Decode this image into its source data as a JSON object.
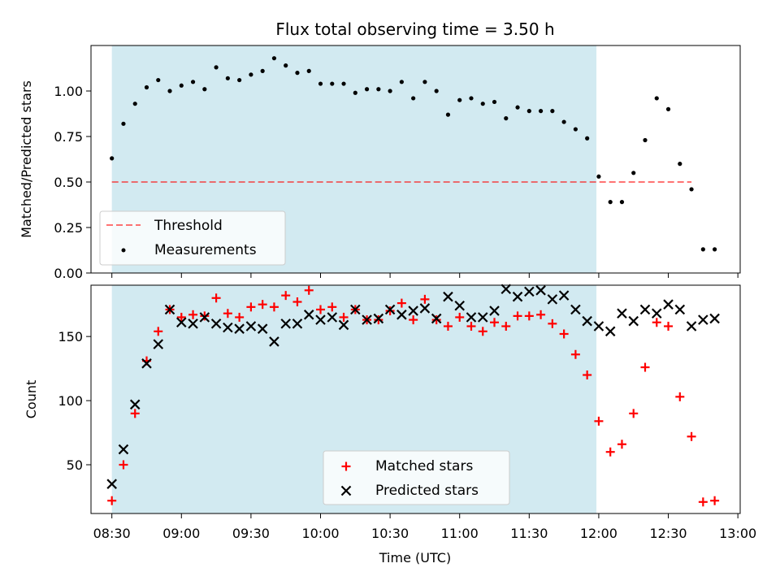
{
  "title": "Flux total observing time = 3.50 h",
  "colors": {
    "shade": "#add8e6",
    "threshold": "#ff0000",
    "matched": "#ff0000",
    "predicted": "#000000",
    "measurement": "#000000"
  },
  "chart_data": [
    {
      "type": "scatter",
      "panel": "top",
      "ylabel": "Matched/Predicted stars",
      "xlabel": "",
      "ylim": [
        0,
        1.25
      ],
      "yticks": [
        "0.00",
        "0.25",
        "0.50",
        "0.75",
        "1.00"
      ],
      "xlim": [
        "08:21",
        "13:01"
      ],
      "shaded_span": [
        "08:30",
        "11:59"
      ],
      "threshold": {
        "value": 0.5,
        "x_range": [
          "08:30",
          "12:40"
        ],
        "style": "dashed"
      },
      "legend": {
        "position": "lower-left",
        "entries": [
          "Threshold",
          "Measurements"
        ]
      },
      "series": [
        {
          "name": "Measurements",
          "points": [
            [
              "08:30",
              0.63
            ],
            [
              "08:35",
              0.82
            ],
            [
              "08:40",
              0.93
            ],
            [
              "08:45",
              1.02
            ],
            [
              "08:50",
              1.06
            ],
            [
              "08:55",
              1.0
            ],
            [
              "09:00",
              1.03
            ],
            [
              "09:05",
              1.05
            ],
            [
              "09:10",
              1.01
            ],
            [
              "09:15",
              1.13
            ],
            [
              "09:20",
              1.07
            ],
            [
              "09:25",
              1.06
            ],
            [
              "09:30",
              1.09
            ],
            [
              "09:35",
              1.11
            ],
            [
              "09:40",
              1.18
            ],
            [
              "09:45",
              1.14
            ],
            [
              "09:50",
              1.1
            ],
            [
              "09:55",
              1.11
            ],
            [
              "10:00",
              1.04
            ],
            [
              "10:05",
              1.04
            ],
            [
              "10:10",
              1.04
            ],
            [
              "10:15",
              0.99
            ],
            [
              "10:20",
              1.01
            ],
            [
              "10:25",
              1.01
            ],
            [
              "10:30",
              1.0
            ],
            [
              "10:35",
              1.05
            ],
            [
              "10:40",
              0.96
            ],
            [
              "10:45",
              1.05
            ],
            [
              "10:50",
              1.0
            ],
            [
              "10:55",
              0.87
            ],
            [
              "11:00",
              0.95
            ],
            [
              "11:05",
              0.96
            ],
            [
              "11:10",
              0.93
            ],
            [
              "11:15",
              0.94
            ],
            [
              "11:20",
              0.85
            ],
            [
              "11:25",
              0.91
            ],
            [
              "11:30",
              0.89
            ],
            [
              "11:35",
              0.89
            ],
            [
              "11:40",
              0.89
            ],
            [
              "11:45",
              0.83
            ],
            [
              "11:50",
              0.79
            ],
            [
              "11:55",
              0.74
            ],
            [
              "12:00",
              0.53
            ],
            [
              "12:05",
              0.39
            ],
            [
              "12:10",
              0.39
            ],
            [
              "12:15",
              0.55
            ],
            [
              "12:20",
              0.73
            ],
            [
              "12:25",
              0.96
            ],
            [
              "12:30",
              0.9
            ],
            [
              "12:35",
              0.6
            ],
            [
              "12:40",
              0.46
            ],
            [
              "12:45",
              0.13
            ],
            [
              "12:50",
              0.13
            ]
          ]
        }
      ]
    },
    {
      "type": "scatter",
      "panel": "bottom",
      "ylabel": "Count",
      "xlabel": "Time (UTC)",
      "ylim": [
        12,
        190
      ],
      "yticks": [
        "50",
        "100",
        "150"
      ],
      "xticks": [
        "08:30",
        "09:00",
        "09:30",
        "10:00",
        "10:30",
        "11:00",
        "11:30",
        "12:00",
        "12:30",
        "13:00"
      ],
      "xlim": [
        "08:21",
        "13:01"
      ],
      "shaded_span": [
        "08:30",
        "11:59"
      ],
      "legend": {
        "position": "lower-center",
        "entries": [
          "Matched stars",
          "Predicted stars"
        ]
      },
      "series": [
        {
          "name": "Matched stars",
          "marker": "+",
          "points": [
            [
              "08:30",
              22
            ],
            [
              "08:35",
              50
            ],
            [
              "08:40",
              90
            ],
            [
              "08:45",
              131
            ],
            [
              "08:50",
              154
            ],
            [
              "08:55",
              171
            ],
            [
              "09:00",
              165
            ],
            [
              "09:05",
              167
            ],
            [
              "09:10",
              166
            ],
            [
              "09:15",
              180
            ],
            [
              "09:20",
              168
            ],
            [
              "09:25",
              165
            ],
            [
              "09:30",
              173
            ],
            [
              "09:35",
              175
            ],
            [
              "09:40",
              173
            ],
            [
              "09:45",
              182
            ],
            [
              "09:50",
              177
            ],
            [
              "09:55",
              186
            ],
            [
              "10:00",
              171
            ],
            [
              "10:05",
              173
            ],
            [
              "10:10",
              165
            ],
            [
              "10:15",
              171
            ],
            [
              "10:20",
              163
            ],
            [
              "10:25",
              163
            ],
            [
              "10:30",
              170
            ],
            [
              "10:35",
              176
            ],
            [
              "10:40",
              163
            ],
            [
              "10:45",
              179
            ],
            [
              "10:50",
              163
            ],
            [
              "10:55",
              158
            ],
            [
              "11:00",
              165
            ],
            [
              "11:05",
              158
            ],
            [
              "11:10",
              154
            ],
            [
              "11:15",
              161
            ],
            [
              "11:20",
              158
            ],
            [
              "11:25",
              166
            ],
            [
              "11:30",
              166
            ],
            [
              "11:35",
              167
            ],
            [
              "11:40",
              160
            ],
            [
              "11:45",
              152
            ],
            [
              "11:50",
              136
            ],
            [
              "11:55",
              120
            ],
            [
              "12:00",
              84
            ],
            [
              "12:05",
              60
            ],
            [
              "12:10",
              66
            ],
            [
              "12:15",
              90
            ],
            [
              "12:20",
              126
            ],
            [
              "12:25",
              161
            ],
            [
              "12:30",
              158
            ],
            [
              "12:35",
              103
            ],
            [
              "12:40",
              72
            ],
            [
              "12:45",
              21
            ],
            [
              "12:50",
              22
            ]
          ]
        },
        {
          "name": "Predicted stars",
          "marker": "x",
          "points": [
            [
              "08:30",
              35
            ],
            [
              "08:35",
              62
            ],
            [
              "08:40",
              97
            ],
            [
              "08:45",
              129
            ],
            [
              "08:50",
              144
            ],
            [
              "08:55",
              171
            ],
            [
              "09:00",
              161
            ],
            [
              "09:05",
              160
            ],
            [
              "09:10",
              165
            ],
            [
              "09:15",
              160
            ],
            [
              "09:20",
              157
            ],
            [
              "09:25",
              156
            ],
            [
              "09:30",
              158
            ],
            [
              "09:35",
              156
            ],
            [
              "09:40",
              146
            ],
            [
              "09:45",
              160
            ],
            [
              "09:50",
              160
            ],
            [
              "09:55",
              167
            ],
            [
              "10:00",
              163
            ],
            [
              "10:05",
              165
            ],
            [
              "10:10",
              159
            ],
            [
              "10:15",
              171
            ],
            [
              "10:20",
              163
            ],
            [
              "10:25",
              164
            ],
            [
              "10:30",
              171
            ],
            [
              "10:35",
              167
            ],
            [
              "10:40",
              170
            ],
            [
              "10:45",
              172
            ],
            [
              "10:50",
              164
            ],
            [
              "10:55",
              181
            ],
            [
              "11:00",
              174
            ],
            [
              "11:05",
              165
            ],
            [
              "11:10",
              165
            ],
            [
              "11:15",
              170
            ],
            [
              "11:20",
              187
            ],
            [
              "11:25",
              181
            ],
            [
              "11:30",
              185
            ],
            [
              "11:35",
              186
            ],
            [
              "11:40",
              179
            ],
            [
              "11:45",
              182
            ],
            [
              "11:50",
              171
            ],
            [
              "11:55",
              162
            ],
            [
              "12:00",
              158
            ],
            [
              "12:05",
              154
            ],
            [
              "12:10",
              168
            ],
            [
              "12:15",
              162
            ],
            [
              "12:20",
              171
            ],
            [
              "12:25",
              168
            ],
            [
              "12:30",
              175
            ],
            [
              "12:35",
              171
            ],
            [
              "12:40",
              158
            ],
            [
              "12:45",
              163
            ],
            [
              "12:50",
              164
            ]
          ]
        }
      ]
    }
  ]
}
